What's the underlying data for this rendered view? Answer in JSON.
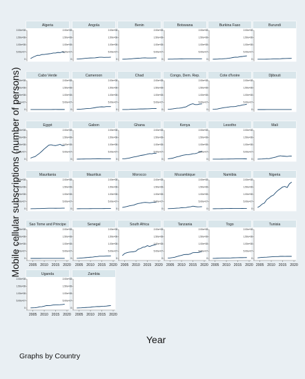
{
  "chart_data": {
    "type": "line",
    "ylabel": "Mobile cellular subscriptions (number of persons)",
    "xlabel": "Year",
    "note": "Graphs by Country",
    "xticks": [
      2005,
      2010,
      2015,
      2020
    ],
    "ytick_labels": [
      "0",
      "5.00e+07",
      "1.00e+08",
      "1.50e+08",
      "2.00e+08"
    ],
    "ylim": [
      0,
      200000000
    ],
    "xlim": [
      2003,
      2020
    ],
    "line_color": "#1a476f",
    "panel_header_color": "#d9e6eb",
    "years": [
      2004,
      2005,
      2006,
      2007,
      2008,
      2009,
      2010,
      2011,
      2012,
      2013,
      2014,
      2015,
      2016,
      2017,
      2018,
      2019
    ],
    "panels": [
      {
        "country": "Algeria",
        "values": [
          4.9,
          13.7,
          20.9,
          27.6,
          27.1,
          32.7,
          32.8,
          35.6,
          37.5,
          39.5,
          43.3,
          43.2,
          47.0,
          45.8,
          51.4,
          45.8
        ]
      },
      {
        "country": "Angola",
        "values": [
          1.6,
          1.6,
          3.3,
          4.9,
          6.8,
          8.1,
          8.9,
          9.4,
          9.8,
          11.9,
          13.9,
          13.9,
          13.0,
          13.3,
          13.3,
          14.5
        ]
      },
      {
        "country": "Benin",
        "values": [
          0.4,
          0.6,
          1.1,
          2.1,
          3.4,
          5.0,
          6.0,
          7.1,
          7.8,
          9.2,
          9.7,
          8.7,
          8.5,
          8.7,
          9.2,
          9.5
        ]
      },
      {
        "country": "Botswana",
        "values": [
          0.6,
          0.8,
          1.0,
          1.4,
          1.5,
          1.9,
          2.4,
          2.9,
          3.1,
          3.2,
          3.4,
          3.5,
          3.5,
          3.4,
          3.2,
          3.3
        ]
      },
      {
        "country": "Burkina Faso",
        "values": [
          0.4,
          0.6,
          1.0,
          1.9,
          2.6,
          3.8,
          4.9,
          6.7,
          9.4,
          12.5,
          14.4,
          14.0,
          17.9,
          19.0,
          21.8,
          23.2
        ]
      },
      {
        "country": "Burundi",
        "values": [
          0.1,
          0.2,
          0.3,
          0.4,
          0.6,
          0.8,
          1.3,
          2.2,
          2.3,
          2.9,
          3.5,
          4.8,
          4.9,
          5.6,
          5.9,
          6.2
        ]
      },
      {
        "country": "Cabo Verde",
        "values": [
          0.1,
          0.1,
          0.1,
          0.2,
          0.3,
          0.3,
          0.4,
          0.4,
          0.4,
          0.5,
          0.6,
          0.7,
          0.6,
          0.6,
          0.6,
          0.6
        ]
      },
      {
        "country": "Cameroon",
        "values": [
          1.5,
          2.3,
          3.1,
          4.5,
          6.2,
          7.6,
          8.2,
          10.5,
          13.1,
          16.3,
          18.1,
          19.0,
          18.0,
          20.4,
          20.7,
          20.6
        ]
      },
      {
        "country": "Chad",
        "values": [
          0.1,
          0.2,
          0.5,
          0.7,
          1.9,
          2.6,
          2.9,
          3.8,
          4.2,
          4.2,
          4.8,
          5.3,
          5.8,
          6.6,
          6.9,
          7.2
        ]
      },
      {
        "country": "Congo, Dem. Rep.",
        "values": [
          1.9,
          2.7,
          4.4,
          6.6,
          9.3,
          9.8,
          11.8,
          15.6,
          18.7,
          27.8,
          36.1,
          40.0,
          34.2,
          34.1,
          38.0,
          39.0
        ]
      },
      {
        "country": "Cote d'Ivoire",
        "values": [
          2.2,
          2.7,
          4.1,
          7.5,
          10.4,
          13.3,
          15.1,
          17.4,
          19.8,
          19.8,
          21.2,
          25.1,
          27.1,
          31.8,
          33.5,
          37.5
        ]
      },
      {
        "country": "Djibouti",
        "values": [
          0.04,
          0.04,
          0.05,
          0.05,
          0.09,
          0.12,
          0.16,
          0.19,
          0.21,
          0.25,
          0.27,
          0.29,
          0.33,
          0.38,
          0.4,
          0.43
        ]
      },
      {
        "country": "Egypt",
        "values": [
          7.6,
          13.6,
          18.0,
          30.0,
          41.3,
          55.4,
          70.7,
          83.4,
          96.8,
          99.7,
          95.3,
          94.0,
          97.8,
          102.4,
          93.8,
          95.4
        ]
      },
      {
        "country": "Gabon",
        "values": [
          0.5,
          0.6,
          0.8,
          1.2,
          1.5,
          1.5,
          1.6,
          2.3,
          2.8,
          3.0,
          3.0,
          2.9,
          2.9,
          2.8,
          2.8,
          2.8
        ]
      },
      {
        "country": "Ghana",
        "values": [
          2.1,
          2.8,
          5.2,
          7.6,
          11.6,
          15.1,
          17.4,
          21.2,
          25.6,
          28.0,
          30.4,
          35.0,
          38.3,
          37.4,
          41.3,
          40.4
        ]
      },
      {
        "country": "Kenya",
        "values": [
          2.5,
          4.6,
          6.5,
          11.4,
          16.2,
          19.4,
          24.9,
          28.1,
          30.7,
          31.3,
          33.6,
          37.7,
          38.5,
          42.8,
          49.5,
          54.6
        ]
      },
      {
        "country": "Lesotho",
        "values": [
          0.2,
          0.3,
          0.4,
          0.5,
          0.6,
          0.7,
          1.0,
          1.2,
          1.4,
          1.7,
          2.0,
          2.1,
          2.2,
          2.2,
          2.4,
          1.8
        ]
      },
      {
        "country": "Mali",
        "values": [
          0.4,
          0.9,
          1.5,
          2.5,
          4.6,
          3.3,
          7.5,
          10.8,
          14.6,
          19.7,
          23.6,
          21.4,
          20.2,
          18.9,
          21.3,
          21.5
        ]
      },
      {
        "country": "Mauritania",
        "values": [
          0.5,
          0.7,
          1.1,
          1.4,
          1.7,
          2.1,
          2.7,
          3.2,
          4.0,
          3.8,
          3.8,
          3.6,
          3.8,
          4.1,
          4.3,
          4.5
        ]
      },
      {
        "country": "Mauritius",
        "values": [
          0.5,
          0.6,
          0.7,
          0.8,
          0.9,
          1.0,
          1.2,
          1.3,
          1.4,
          1.5,
          1.6,
          1.7,
          1.8,
          1.9,
          1.9,
          1.9
        ]
      },
      {
        "country": "Morocco",
        "values": [
          9.4,
          12.4,
          16.0,
          20.0,
          22.8,
          25.3,
          31.9,
          36.6,
          39.0,
          42.4,
          44.1,
          43.1,
          41.5,
          43.9,
          44.9,
          46.6
        ]
      },
      {
        "country": "Mozambique",
        "values": [
          0.7,
          1.5,
          2.3,
          3.3,
          4.4,
          5.2,
          7.2,
          8.1,
          8.6,
          12.4,
          14.0,
          18.3,
          15.5,
          13.4,
          13.8,
          14.7
        ]
      },
      {
        "country": "Namibia",
        "values": [
          0.5,
          0.6,
          0.8,
          1.1,
          1.2,
          1.6,
          1.9,
          2.3,
          2.4,
          2.6,
          2.8,
          2.6,
          2.5,
          2.4,
          2.6,
          2.6
        ]
      },
      {
        "country": "Nigeria",
        "values": [
          9.1,
          18.6,
          32.3,
          40.0,
          62.9,
          74.5,
          87.3,
          95.2,
          112.8,
          127.6,
          138.9,
          150.8,
          154.3,
          147.0,
          172.7,
          184.7
        ]
      },
      {
        "country": "Sao Tome and Principe",
        "values": [
          0.01,
          0.02,
          0.04,
          0.04,
          0.05,
          0.08,
          0.1,
          0.11,
          0.12,
          0.13,
          0.13,
          0.16,
          0.17,
          0.17,
          0.16,
          0.16
        ]
      },
      {
        "country": "Senegal",
        "values": [
          1.1,
          1.7,
          2.9,
          4.1,
          5.4,
          6.9,
          8.3,
          9.4,
          11.5,
          12.8,
          15.0,
          15.0,
          15.2,
          16.3,
          17.0,
          17.4
        ]
      },
      {
        "country": "South Africa",
        "values": [
          19.5,
          33.9,
          39.7,
          43.0,
          45.0,
          46.4,
          50.4,
          64.0,
          68.4,
          76.9,
          79.5,
          87.9,
          82.4,
          88.5,
          93.0,
          96.9
        ]
      },
      {
        "country": "Tanzania",
        "values": [
          1.9,
          3.4,
          5.6,
          8.3,
          13.0,
          17.5,
          20.9,
          25.7,
          27.4,
          27.4,
          31.8,
          39.8,
          40.2,
          40.0,
          43.6,
          47.7
        ]
      },
      {
        "country": "Togo",
        "values": [
          0.3,
          0.4,
          1.2,
          1.5,
          1.9,
          2.5,
          2.6,
          2.8,
          3.2,
          4.2,
          4.6,
          5.1,
          5.4,
          5.4,
          5.8,
          6.0
        ]
      },
      {
        "country": "Tunisia",
        "values": [
          3.6,
          5.7,
          7.3,
          7.8,
          8.6,
          9.8,
          11.1,
          12.4,
          12.7,
          12.7,
          14.3,
          14.6,
          14.1,
          14.7,
          14.3,
          14.3
        ]
      },
      {
        "country": "Uganda",
        "values": [
          1.1,
          1.5,
          2.0,
          4.2,
          8.6,
          9.4,
          12.8,
          16.7,
          16.4,
          18.1,
          21.4,
          22.5,
          22.1,
          23.0,
          24.3,
          26.5
        ]
      },
      {
        "country": "Zambia",
        "values": [
          0.5,
          0.9,
          1.4,
          2.6,
          3.5,
          4.4,
          5.4,
          8.2,
          9.1,
          10.4,
          10.1,
          11.7,
          12.0,
          13.4,
          15.5,
          17.2
        ]
      }
    ]
  }
}
